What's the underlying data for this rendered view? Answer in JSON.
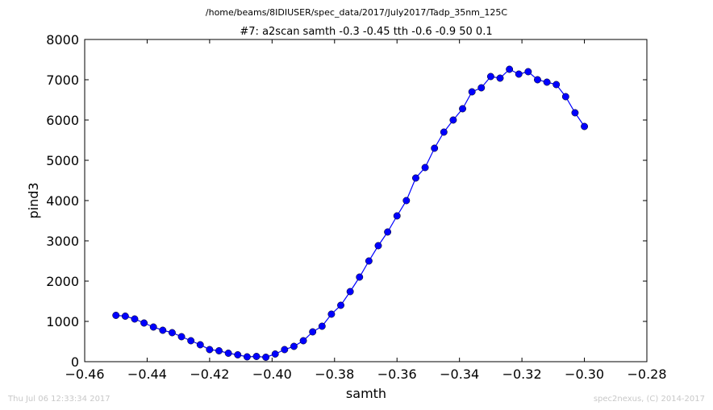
{
  "header": {
    "suptitle": "/home/beams/8IDIUSER/spec_data/2017/July2017/Tadp_35nm_125C",
    "timestamp": "Thu Jul 06 12:33:34 2017",
    "credit": "spec2nexus, (C) 2014-2017"
  },
  "colors": {
    "series": "#0000ff"
  },
  "chart_data": {
    "type": "scatter",
    "title": "#7: a2scan  samth -0.3 -0.45  tth -0.6 -0.9  50 0.1",
    "xlabel": "samth",
    "ylabel": "pind3",
    "xlim": [
      -0.46,
      -0.28
    ],
    "ylim": [
      0,
      8000
    ],
    "xticks": [
      -0.46,
      -0.44,
      -0.42,
      -0.4,
      -0.38,
      -0.36,
      -0.34,
      -0.32,
      -0.3,
      -0.28
    ],
    "xtick_labels": [
      "−0.46",
      "−0.44",
      "−0.42",
      "−0.40",
      "−0.38",
      "−0.36",
      "−0.34",
      "−0.32",
      "−0.30",
      "−0.28"
    ],
    "yticks": [
      0,
      1000,
      2000,
      3000,
      4000,
      5000,
      6000,
      7000,
      8000
    ],
    "ytick_labels": [
      "0",
      "1000",
      "2000",
      "3000",
      "4000",
      "5000",
      "6000",
      "7000",
      "8000"
    ],
    "grid": false,
    "x": [
      -0.45,
      -0.447,
      -0.444,
      -0.441,
      -0.438,
      -0.435,
      -0.432,
      -0.429,
      -0.426,
      -0.423,
      -0.42,
      -0.417,
      -0.414,
      -0.411,
      -0.408,
      -0.405,
      -0.402,
      -0.399,
      -0.396,
      -0.393,
      -0.39,
      -0.387,
      -0.384,
      -0.381,
      -0.378,
      -0.375,
      -0.372,
      -0.369,
      -0.366,
      -0.363,
      -0.36,
      -0.357,
      -0.354,
      -0.351,
      -0.348,
      -0.345,
      -0.342,
      -0.339,
      -0.336,
      -0.333,
      -0.33,
      -0.327,
      -0.324,
      -0.321,
      -0.318,
      -0.315,
      -0.312,
      -0.309,
      -0.306,
      -0.303,
      -0.3
    ],
    "y": [
      1150,
      1130,
      1060,
      960,
      860,
      780,
      720,
      620,
      520,
      420,
      300,
      270,
      210,
      170,
      120,
      130,
      110,
      190,
      300,
      380,
      520,
      740,
      880,
      1180,
      1400,
      1740,
      2100,
      2500,
      2880,
      3220,
      3620,
      4000,
      4560,
      4820,
      5300,
      5700,
      6000,
      6280,
      6700,
      6800,
      7080,
      7040,
      7260,
      7140,
      7200,
      7000,
      6940,
      6880,
      6580,
      6180,
      5840
    ]
  }
}
